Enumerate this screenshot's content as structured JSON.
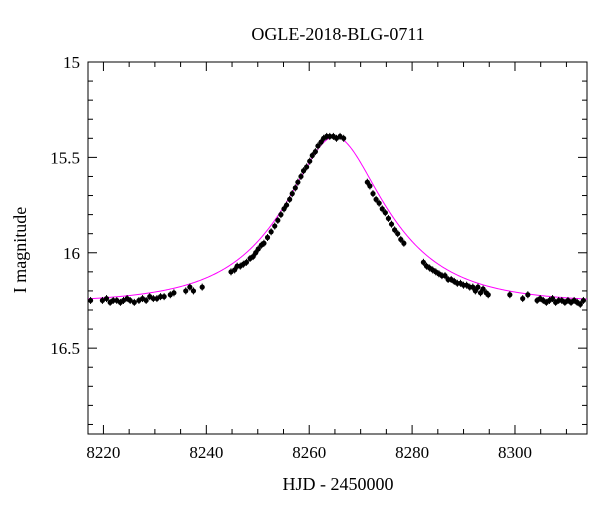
{
  "chart_data": {
    "type": "scatter",
    "title": "OGLE-2018-BLG-0711",
    "xlabel": "HJD - 2450000",
    "ylabel": "I magnitude",
    "xlim": [
      8217,
      8314
    ],
    "ylim": [
      15.0,
      16.95
    ],
    "y_inverted": true,
    "xticks": [
      "8220",
      "8240",
      "8260",
      "8280",
      "8300"
    ],
    "yticks": [
      "15",
      "15.5",
      "16",
      "16.5"
    ],
    "grid": false,
    "legend": "none",
    "model": {
      "color": "#ff00ff",
      "t0": 8265.0,
      "tE": 18.0,
      "u0": 0.46,
      "baseline_mag": 16.265,
      "fs": 0.92
    },
    "series": [
      {
        "marker_color": "#000000",
        "points": [
          [
            8217.5,
            16.25
          ],
          [
            8219.8,
            16.25
          ],
          [
            8220.6,
            16.24
          ],
          [
            8221.3,
            16.26
          ],
          [
            8221.9,
            16.25
          ],
          [
            8222.6,
            16.25
          ],
          [
            8223.3,
            16.26
          ],
          [
            8223.9,
            16.25
          ],
          [
            8224.6,
            16.24
          ],
          [
            8225.2,
            16.25
          ],
          [
            8226.0,
            16.26
          ],
          [
            8226.9,
            16.25
          ],
          [
            8227.6,
            16.24
          ],
          [
            8228.3,
            16.25
          ],
          [
            8229.0,
            16.23
          ],
          [
            8229.7,
            16.24
          ],
          [
            8230.4,
            16.24
          ],
          [
            8231.1,
            16.23
          ],
          [
            8231.8,
            16.23
          ],
          [
            8233.0,
            16.22
          ],
          [
            8233.7,
            16.21
          ],
          [
            8236.0,
            16.2
          ],
          [
            8236.8,
            16.18
          ],
          [
            8237.5,
            16.2
          ],
          [
            8239.2,
            16.18
          ],
          [
            8244.8,
            16.1
          ],
          [
            8245.5,
            16.09
          ],
          [
            8246.0,
            16.07
          ],
          [
            8246.6,
            16.07
          ],
          [
            8247.2,
            16.06
          ],
          [
            8247.8,
            16.05
          ],
          [
            8248.5,
            16.03
          ],
          [
            8249.1,
            16.02
          ],
          [
            8249.6,
            16.0
          ],
          [
            8250.1,
            15.98
          ],
          [
            8250.7,
            15.96
          ],
          [
            8251.2,
            15.95
          ],
          [
            8251.9,
            15.92
          ],
          [
            8252.6,
            15.89
          ],
          [
            8253.3,
            15.86
          ],
          [
            8253.9,
            15.83
          ],
          [
            8254.5,
            15.8
          ],
          [
            8255.1,
            15.77
          ],
          [
            8255.6,
            15.75
          ],
          [
            8256.2,
            15.72
          ],
          [
            8256.7,
            15.69
          ],
          [
            8257.3,
            15.66
          ],
          [
            8257.8,
            15.63
          ],
          [
            8258.4,
            15.6
          ],
          [
            8258.9,
            15.57
          ],
          [
            8259.5,
            15.55
          ],
          [
            8260.1,
            15.52
          ],
          [
            8260.6,
            15.49
          ],
          [
            8261.2,
            15.47
          ],
          [
            8261.7,
            15.44
          ],
          [
            8262.3,
            15.42
          ],
          [
            8262.8,
            15.4
          ],
          [
            8263.4,
            15.39
          ],
          [
            8264.0,
            15.39
          ],
          [
            8264.7,
            15.39
          ],
          [
            8265.3,
            15.4
          ],
          [
            8266.0,
            15.39
          ],
          [
            8266.7,
            15.4
          ],
          [
            8271.3,
            15.63
          ],
          [
            8271.8,
            15.65
          ],
          [
            8272.4,
            15.69
          ],
          [
            8273.0,
            15.72
          ],
          [
            8273.6,
            15.74
          ],
          [
            8274.2,
            15.77
          ],
          [
            8274.8,
            15.79
          ],
          [
            8275.4,
            15.82
          ],
          [
            8276.0,
            15.85
          ],
          [
            8276.6,
            15.88
          ],
          [
            8277.2,
            15.9
          ],
          [
            8277.8,
            15.93
          ],
          [
            8278.4,
            15.95
          ],
          [
            8282.2,
            16.05
          ],
          [
            8282.8,
            16.07
          ],
          [
            8283.4,
            16.08
          ],
          [
            8284.0,
            16.09
          ],
          [
            8284.6,
            16.1
          ],
          [
            8285.2,
            16.11
          ],
          [
            8285.8,
            16.12
          ],
          [
            8286.4,
            16.12
          ],
          [
            8287.0,
            16.14
          ],
          [
            8287.6,
            16.14
          ],
          [
            8288.2,
            16.15
          ],
          [
            8288.8,
            16.16
          ],
          [
            8289.4,
            16.16
          ],
          [
            8290.0,
            16.17
          ],
          [
            8290.6,
            16.17
          ],
          [
            8291.2,
            16.18
          ],
          [
            8291.8,
            16.18
          ],
          [
            8292.3,
            16.2
          ],
          [
            8292.8,
            16.18
          ],
          [
            8293.3,
            16.21
          ],
          [
            8293.8,
            16.19
          ],
          [
            8294.4,
            16.21
          ],
          [
            8294.8,
            16.22
          ],
          [
            8299.0,
            16.22
          ],
          [
            8301.5,
            16.24
          ],
          [
            8302.5,
            16.22
          ],
          [
            8304.3,
            16.25
          ],
          [
            8304.9,
            16.24
          ],
          [
            8305.5,
            16.25
          ],
          [
            8306.1,
            16.26
          ],
          [
            8306.7,
            16.25
          ],
          [
            8307.3,
            16.24
          ],
          [
            8307.9,
            16.26
          ],
          [
            8308.5,
            16.25
          ],
          [
            8309.1,
            16.25
          ],
          [
            8309.7,
            16.26
          ],
          [
            8310.3,
            16.25
          ],
          [
            8310.9,
            16.26
          ],
          [
            8311.5,
            16.25
          ],
          [
            8312.1,
            16.26
          ],
          [
            8312.7,
            16.27
          ],
          [
            8313.3,
            16.25
          ]
        ]
      }
    ]
  }
}
